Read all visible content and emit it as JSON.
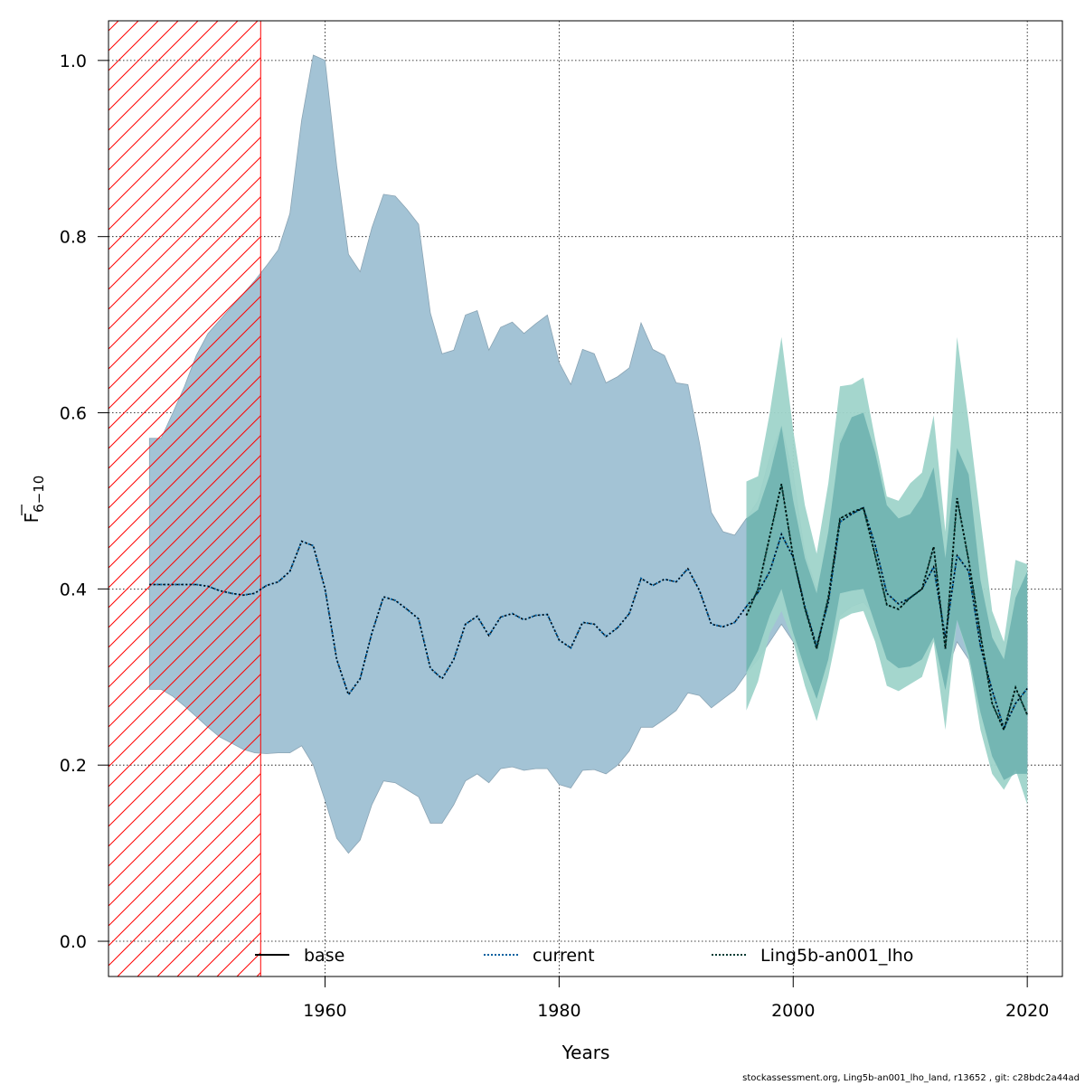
{
  "chart_data": {
    "type": "area",
    "title": "",
    "xlabel": "Years",
    "ylabel_main": "F",
    "ylabel_sub": "6−10",
    "xlim": [
      1941.5,
      2023
    ],
    "ylim": [
      -0.04,
      1.045
    ],
    "x_ticks": [
      1960,
      1980,
      2000,
      2020
    ],
    "y_ticks": [
      0.0,
      0.2,
      0.4,
      0.6,
      0.8,
      1.0
    ],
    "y_tick_labels": [
      "0.0",
      "0.2",
      "0.4",
      "0.6",
      "0.8",
      "1.0"
    ],
    "grid": true,
    "hatch_region": {
      "x_start": 1941.5,
      "x_end": 1954.5,
      "color": "#ff0000"
    },
    "colors": {
      "base_band": "#a3c3d5",
      "base_line": "#000000",
      "current_line": "#0060a0",
      "ling_band_outer": "#9fd4ca",
      "ling_band_inner": "#6fb3b0",
      "ling_line": "#003b33"
    },
    "legend": [
      {
        "label": "base",
        "style": "solid",
        "color": "#000000"
      },
      {
        "label": "current",
        "style": "dotted",
        "color": "#0060a0"
      },
      {
        "label": "Ling5b-an001_lho",
        "style": "dotted",
        "color": "#003b33"
      }
    ],
    "series": [
      {
        "name": "base",
        "x": [
          1945,
          1946,
          1947,
          1948,
          1949,
          1950,
          1951,
          1952,
          1953,
          1954,
          1955,
          1956,
          1957,
          1958,
          1959,
          1960,
          1961,
          1962,
          1963,
          1964,
          1965,
          1966,
          1967,
          1968,
          1969,
          1970,
          1971,
          1972,
          1973,
          1974,
          1975,
          1976,
          1977,
          1978,
          1979,
          1980,
          1981,
          1982,
          1983,
          1984,
          1985,
          1986,
          1987,
          1988,
          1989,
          1990,
          1991,
          1992,
          1993,
          1994,
          1995,
          1996,
          1997,
          1998,
          1999,
          2000,
          2001,
          2002,
          2003,
          2004,
          2005,
          2006,
          2007,
          2008,
          2009,
          2010,
          2011,
          2012,
          2013,
          2014,
          2015,
          2016,
          2017,
          2018,
          2019,
          2020
        ],
        "mean": [
          0.405,
          0.405,
          0.405,
          0.405,
          0.405,
          0.403,
          0.398,
          0.395,
          0.393,
          0.395,
          0.404,
          0.408,
          0.42,
          0.454,
          0.449,
          0.4,
          0.32,
          0.28,
          0.298,
          0.35,
          0.391,
          0.387,
          0.377,
          0.366,
          0.31,
          0.298,
          0.32,
          0.36,
          0.369,
          0.347,
          0.368,
          0.372,
          0.365,
          0.37,
          0.371,
          0.342,
          0.333,
          0.362,
          0.36,
          0.346,
          0.356,
          0.372,
          0.412,
          0.404,
          0.411,
          0.408,
          0.423,
          0.398,
          0.36,
          0.357,
          0.362,
          0.38,
          0.396,
          0.42,
          0.462,
          0.436,
          0.38,
          0.335,
          0.385,
          0.476,
          0.485,
          0.492,
          0.45,
          0.395,
          0.383,
          0.39,
          0.4,
          0.425,
          0.345,
          0.438,
          0.42,
          0.335,
          0.285,
          0.242,
          0.27,
          0.287
        ],
        "lower": [
          0.286,
          0.286,
          0.278,
          0.267,
          0.255,
          0.243,
          0.232,
          0.225,
          0.218,
          0.214,
          0.213,
          0.214,
          0.214,
          0.222,
          0.2,
          0.16,
          0.117,
          0.1,
          0.115,
          0.155,
          0.182,
          0.18,
          0.172,
          0.164,
          0.134,
          0.134,
          0.155,
          0.182,
          0.19,
          0.18,
          0.196,
          0.198,
          0.194,
          0.196,
          0.196,
          0.178,
          0.174,
          0.194,
          0.195,
          0.19,
          0.2,
          0.216,
          0.243,
          0.243,
          0.252,
          0.262,
          0.282,
          0.279,
          0.265,
          0.275,
          0.285,
          0.304,
          0.32,
          0.34,
          0.36,
          0.34,
          0.31,
          0.3,
          0.33,
          0.37,
          0.38,
          0.385,
          0.37,
          0.34,
          0.32,
          0.33,
          0.34,
          0.345,
          0.3,
          0.34,
          0.32,
          0.26,
          0.215,
          0.2,
          0.195,
          0.2
        ],
        "upper": [
          0.571,
          0.571,
          0.6,
          0.63,
          0.665,
          0.69,
          0.705,
          0.72,
          0.735,
          0.75,
          0.767,
          0.785,
          0.826,
          0.932,
          1.006,
          1.0,
          0.88,
          0.78,
          0.76,
          0.81,
          0.848,
          0.846,
          0.831,
          0.814,
          0.713,
          0.667,
          0.671,
          0.711,
          0.716,
          0.671,
          0.697,
          0.703,
          0.69,
          0.701,
          0.711,
          0.657,
          0.632,
          0.672,
          0.667,
          0.634,
          0.641,
          0.651,
          0.702,
          0.672,
          0.665,
          0.634,
          0.632,
          0.565,
          0.487,
          0.465,
          0.461,
          0.48,
          0.5,
          0.55,
          0.585,
          0.53,
          0.44,
          0.4,
          0.45,
          0.57,
          0.59,
          0.6,
          0.545,
          0.47,
          0.45,
          0.455,
          0.47,
          0.505,
          0.415,
          0.53,
          0.5,
          0.4,
          0.34,
          0.3,
          0.33,
          0.36
        ]
      },
      {
        "name": "current",
        "x": [
          1945,
          1946,
          1947,
          1948,
          1949,
          1950,
          1951,
          1952,
          1953,
          1954,
          1955,
          1956,
          1957,
          1958,
          1959,
          1960,
          1961,
          1962,
          1963,
          1964,
          1965,
          1966,
          1967,
          1968,
          1969,
          1970,
          1971,
          1972,
          1973,
          1974,
          1975,
          1976,
          1977,
          1978,
          1979,
          1980,
          1981,
          1982,
          1983,
          1984,
          1985,
          1986,
          1987,
          1988,
          1989,
          1990,
          1991,
          1992,
          1993,
          1994,
          1995,
          1996,
          1997,
          1998,
          1999,
          2000,
          2001,
          2002,
          2003,
          2004,
          2005,
          2006,
          2007,
          2008,
          2009,
          2010,
          2011,
          2012,
          2013,
          2014,
          2015,
          2016,
          2017,
          2018,
          2019,
          2020
        ],
        "values": [
          0.405,
          0.405,
          0.405,
          0.405,
          0.405,
          0.403,
          0.398,
          0.395,
          0.393,
          0.395,
          0.404,
          0.408,
          0.42,
          0.454,
          0.449,
          0.4,
          0.32,
          0.28,
          0.298,
          0.35,
          0.391,
          0.387,
          0.377,
          0.366,
          0.31,
          0.298,
          0.32,
          0.36,
          0.369,
          0.347,
          0.368,
          0.372,
          0.365,
          0.37,
          0.371,
          0.342,
          0.333,
          0.362,
          0.36,
          0.346,
          0.356,
          0.372,
          0.412,
          0.404,
          0.411,
          0.408,
          0.423,
          0.398,
          0.36,
          0.357,
          0.362,
          0.38,
          0.396,
          0.42,
          0.462,
          0.436,
          0.38,
          0.335,
          0.385,
          0.476,
          0.485,
          0.492,
          0.45,
          0.395,
          0.383,
          0.39,
          0.4,
          0.425,
          0.345,
          0.438,
          0.42,
          0.335,
          0.285,
          0.242,
          0.27,
          0.287
        ]
      },
      {
        "name": "Ling5b-an001_lho",
        "x": [
          1996,
          1997,
          1998,
          1999,
          2000,
          2001,
          2002,
          2003,
          2004,
          2005,
          2006,
          2007,
          2008,
          2009,
          2010,
          2011,
          2012,
          2013,
          2014,
          2015,
          2016,
          2017,
          2018,
          2019,
          2020
        ],
        "mean": [
          0.37,
          0.4,
          0.46,
          0.519,
          0.436,
          0.378,
          0.332,
          0.39,
          0.48,
          0.487,
          0.492,
          0.438,
          0.382,
          0.377,
          0.39,
          0.4,
          0.448,
          0.332,
          0.503,
          0.432,
          0.348,
          0.27,
          0.24,
          0.288,
          0.257
        ],
        "lower": [
          0.262,
          0.295,
          0.35,
          0.375,
          0.34,
          0.29,
          0.25,
          0.3,
          0.365,
          0.372,
          0.375,
          0.34,
          0.29,
          0.284,
          0.292,
          0.3,
          0.34,
          0.24,
          0.365,
          0.32,
          0.24,
          0.19,
          0.172,
          0.195,
          0.155
        ],
        "upper": [
          0.522,
          0.528,
          0.6,
          0.686,
          0.58,
          0.495,
          0.44,
          0.52,
          0.63,
          0.632,
          0.64,
          0.57,
          0.505,
          0.5,
          0.52,
          0.532,
          0.597,
          0.465,
          0.686,
          0.59,
          0.48,
          0.375,
          0.34,
          0.433,
          0.428
        ],
        "inner_lower": [
          0.305,
          0.33,
          0.37,
          0.4,
          0.35,
          0.31,
          0.275,
          0.32,
          0.395,
          0.398,
          0.4,
          0.36,
          0.32,
          0.31,
          0.312,
          0.32,
          0.345,
          0.285,
          0.365,
          0.325,
          0.26,
          0.21,
          0.183,
          0.19,
          0.19
        ],
        "inner_upper": [
          0.48,
          0.49,
          0.53,
          0.585,
          0.5,
          0.435,
          0.395,
          0.465,
          0.565,
          0.595,
          0.6,
          0.555,
          0.495,
          0.48,
          0.485,
          0.505,
          0.538,
          0.435,
          0.56,
          0.53,
          0.41,
          0.345,
          0.32,
          0.39,
          0.42
        ]
      }
    ]
  },
  "footer_text": "stockassessment.org, Ling5b-an001_lho_land, r13652 , git: c28bdc2a44ad"
}
